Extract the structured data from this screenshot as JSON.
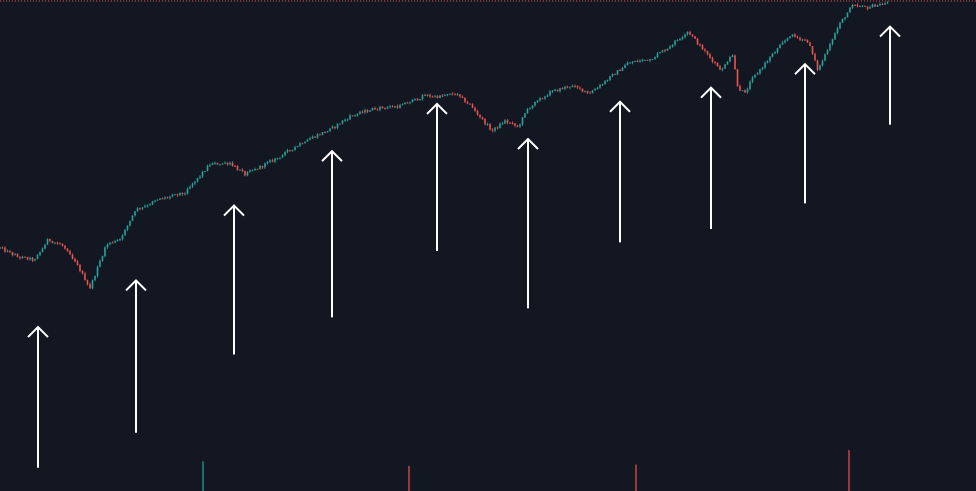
{
  "colors": {
    "background": "#131722",
    "up": "#26a69a",
    "down": "#ef5350",
    "arrow": "#ffffff",
    "top_line": "#ef5350"
  },
  "chart_data": {
    "type": "candlestick",
    "y_scale": "log",
    "grid": false,
    "anchor_path": [
      [
        0,
        1.0
      ],
      [
        18,
        0.94
      ],
      [
        35,
        0.92
      ],
      [
        48,
        1.06
      ],
      [
        62,
        1.02
      ],
      [
        78,
        0.88
      ],
      [
        90,
        0.76
      ],
      [
        106,
        1.02
      ],
      [
        122,
        1.08
      ],
      [
        135,
        1.3
      ],
      [
        160,
        1.4
      ],
      [
        185,
        1.46
      ],
      [
        210,
        1.78
      ],
      [
        230,
        1.8
      ],
      [
        245,
        1.66
      ],
      [
        262,
        1.76
      ],
      [
        280,
        1.88
      ],
      [
        305,
        2.1
      ],
      [
        330,
        2.26
      ],
      [
        350,
        2.48
      ],
      [
        375,
        2.62
      ],
      [
        400,
        2.66
      ],
      [
        425,
        2.86
      ],
      [
        440,
        2.84
      ],
      [
        455,
        2.9
      ],
      [
        470,
        2.68
      ],
      [
        492,
        2.24
      ],
      [
        505,
        2.4
      ],
      [
        518,
        2.3
      ],
      [
        528,
        2.62
      ],
      [
        550,
        2.92
      ],
      [
        570,
        3.06
      ],
      [
        590,
        2.92
      ],
      [
        610,
        3.24
      ],
      [
        628,
        3.58
      ],
      [
        650,
        3.68
      ],
      [
        668,
        3.98
      ],
      [
        688,
        4.46
      ],
      [
        700,
        4.02
      ],
      [
        712,
        3.66
      ],
      [
        722,
        3.4
      ],
      [
        732,
        3.86
      ],
      [
        738,
        3.02
      ],
      [
        745,
        2.9
      ],
      [
        752,
        3.2
      ],
      [
        770,
        3.72
      ],
      [
        790,
        4.34
      ],
      [
        808,
        4.16
      ],
      [
        818,
        3.4
      ],
      [
        830,
        4.1
      ],
      [
        840,
        4.7
      ],
      [
        852,
        5.3
      ],
      [
        868,
        5.25
      ],
      [
        876,
        5.35
      ],
      [
        888,
        5.4
      ]
    ],
    "arrows": [
      {
        "x": 38,
        "y_from": 0.22,
        "y_to": 0.58
      },
      {
        "x": 136,
        "y_from": 0.28,
        "y_to": 0.8
      },
      {
        "x": 234,
        "y_from": 0.48,
        "y_to": 1.34
      },
      {
        "x": 332,
        "y_from": 0.62,
        "y_to": 1.95
      },
      {
        "x": 437,
        "y_from": 0.98,
        "y_to": 2.7
      },
      {
        "x": 528,
        "y_from": 0.66,
        "y_to": 2.12
      },
      {
        "x": 620,
        "y_from": 1.04,
        "y_to": 2.74
      },
      {
        "x": 711,
        "y_from": 1.14,
        "y_to": 3.02
      },
      {
        "x": 805,
        "y_from": 1.36,
        "y_to": 3.55
      },
      {
        "x": 890,
        "y_from": 2.34,
        "y_to": 4.6
      }
    ],
    "volume_spikes": [
      {
        "x": 203,
        "height": 0.45,
        "color": "up"
      },
      {
        "x": 409,
        "height": 0.38,
        "color": "down"
      },
      {
        "x": 636,
        "height": 0.4,
        "color": "down"
      },
      {
        "x": 849,
        "height": 0.62,
        "color": "down"
      }
    ]
  }
}
